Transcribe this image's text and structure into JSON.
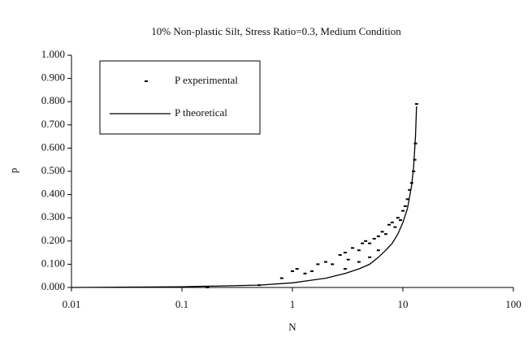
{
  "chart_data": {
    "type": "scatter",
    "title": "10% Non-plastic Silt, Stress Ratio=0.3, Medium Condition",
    "x_label": "N",
    "y_label": "p",
    "xscale": "log",
    "xlim": [
      0.01,
      100
    ],
    "xticks": [
      0.01,
      0.1,
      1,
      10,
      100
    ],
    "ylim": [
      0,
      1
    ],
    "yticks": [
      {
        "value": 0,
        "label": "0.000"
      },
      {
        "value": 0.1,
        "label": "0.100"
      },
      {
        "value": 0.2,
        "label": "0.200"
      },
      {
        "value": 0.3,
        "label": "0.300"
      },
      {
        "value": 0.4,
        "label": "0.400"
      },
      {
        "value": 0.5,
        "label": "0.500"
      },
      {
        "value": 0.6,
        "label": "0.600"
      },
      {
        "value": 0.7,
        "label": "0.700"
      },
      {
        "value": 0.8,
        "label": "0.800"
      },
      {
        "value": 0.9,
        "label": "0.900"
      },
      {
        "value": 1,
        "label": "1.000"
      }
    ],
    "legend": "upper left",
    "series": [
      {
        "name": "P experimental",
        "type": "scatter",
        "color": "#000000",
        "x": [
          0.17,
          0.5,
          0.8,
          1.0,
          1.1,
          1.3,
          1.5,
          1.7,
          2.0,
          2.3,
          2.7,
          3.0,
          3.0,
          3.2,
          3.5,
          4.0,
          4.0,
          4.3,
          4.6,
          5.0,
          5.0,
          5.5,
          6.0,
          6.0,
          6.5,
          7.0,
          7.5,
          8.0,
          8.5,
          9.0,
          9.5,
          10.0,
          10.5,
          11.0,
          11.5,
          12.0,
          12.5,
          12.8,
          13.0,
          13.3
        ],
        "values": [
          0.0,
          0.01,
          0.04,
          0.07,
          0.08,
          0.06,
          0.07,
          0.1,
          0.11,
          0.1,
          0.14,
          0.15,
          0.08,
          0.12,
          0.17,
          0.16,
          0.11,
          0.19,
          0.2,
          0.19,
          0.13,
          0.21,
          0.22,
          0.16,
          0.24,
          0.23,
          0.27,
          0.28,
          0.26,
          0.3,
          0.29,
          0.33,
          0.35,
          0.38,
          0.42,
          0.45,
          0.5,
          0.55,
          0.62,
          0.79
        ]
      },
      {
        "name": "P theoretical",
        "type": "line",
        "color": "#000000",
        "x": [
          0.01,
          0.1,
          0.5,
          1,
          2,
          3,
          4,
          5,
          6,
          7,
          8,
          9,
          10,
          11,
          12,
          12.5,
          13,
          13.3
        ],
        "values": [
          0,
          0.003,
          0.01,
          0.02,
          0.04,
          0.06,
          0.08,
          0.1,
          0.13,
          0.16,
          0.19,
          0.23,
          0.28,
          0.34,
          0.44,
          0.52,
          0.65,
          0.78
        ]
      }
    ]
  }
}
